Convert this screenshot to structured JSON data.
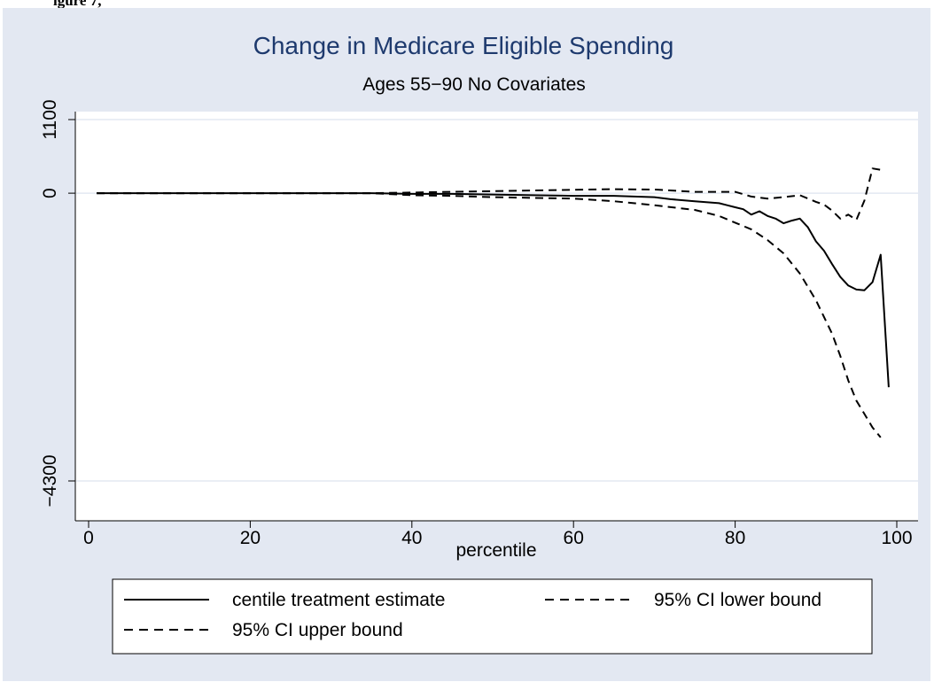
{
  "page_header": "igure 7,",
  "chart_data": {
    "type": "line",
    "title": "Change in Medicare Eligible Spending",
    "subtitle": "Ages 55−90 No Covariates",
    "xlabel": "percentile",
    "ylabel": "",
    "xlim": [
      0,
      100
    ],
    "ylim": [
      -4300,
      1100
    ],
    "xticks": [
      "0",
      "20",
      "40",
      "60",
      "80",
      "100"
    ],
    "yticks": [
      "1100",
      "0",
      "−4300"
    ],
    "ytick_values": [
      1100,
      0,
      -4300
    ],
    "xtick_values": [
      0,
      20,
      40,
      60,
      80,
      100
    ],
    "grid": true,
    "legend_position": "bottom",
    "colors": {
      "figure_bg": "#e3e8f2",
      "plot_bg": "#ffffff",
      "grid": "#e3e8f2",
      "title": "#1e3a6e",
      "line": "#000000"
    },
    "series": [
      {
        "name": "centile treatment estimate",
        "style": "solid",
        "x": [
          1,
          35,
          40,
          45,
          50,
          55,
          60,
          65,
          70,
          72,
          75,
          78,
          79,
          80,
          81,
          82,
          83,
          84,
          85,
          86,
          87,
          88,
          89,
          90,
          91,
          92,
          93,
          94,
          95,
          96,
          97,
          98,
          99
        ],
        "y": [
          0,
          0,
          -10,
          -10,
          -20,
          -30,
          -40,
          -40,
          -60,
          -90,
          -120,
          -150,
          -180,
          -210,
          -240,
          -320,
          -270,
          -340,
          -380,
          -450,
          -410,
          -380,
          -510,
          -720,
          -860,
          -1060,
          -1250,
          -1380,
          -1440,
          -1450,
          -1330,
          -920,
          -2900
        ]
      },
      {
        "name": "95% CI lower bound",
        "style": "dashed",
        "x": [
          1,
          35,
          40,
          45,
          50,
          55,
          60,
          65,
          70,
          75,
          78,
          80,
          82,
          84,
          86,
          88,
          90,
          91,
          92,
          93,
          94,
          95,
          96,
          97,
          98
        ],
        "y": [
          0,
          0,
          -30,
          -40,
          -60,
          -70,
          -80,
          -120,
          -180,
          -250,
          -340,
          -440,
          -540,
          -700,
          -900,
          -1200,
          -1600,
          -1850,
          -2100,
          -2430,
          -2800,
          -3100,
          -3300,
          -3500,
          -3650
        ]
      },
      {
        "name": "95% CI upper bound",
        "style": "dashed",
        "x": [
          1,
          35,
          40,
          45,
          50,
          55,
          60,
          65,
          70,
          75,
          80,
          82,
          84,
          86,
          88,
          90,
          91,
          92,
          93,
          94,
          95,
          96,
          97,
          98
        ],
        "y": [
          0,
          0,
          10,
          20,
          30,
          40,
          50,
          60,
          55,
          20,
          20,
          -50,
          -80,
          -60,
          -30,
          -130,
          -170,
          -260,
          -380,
          -320,
          -400,
          -110,
          370,
          350
        ]
      }
    ]
  }
}
